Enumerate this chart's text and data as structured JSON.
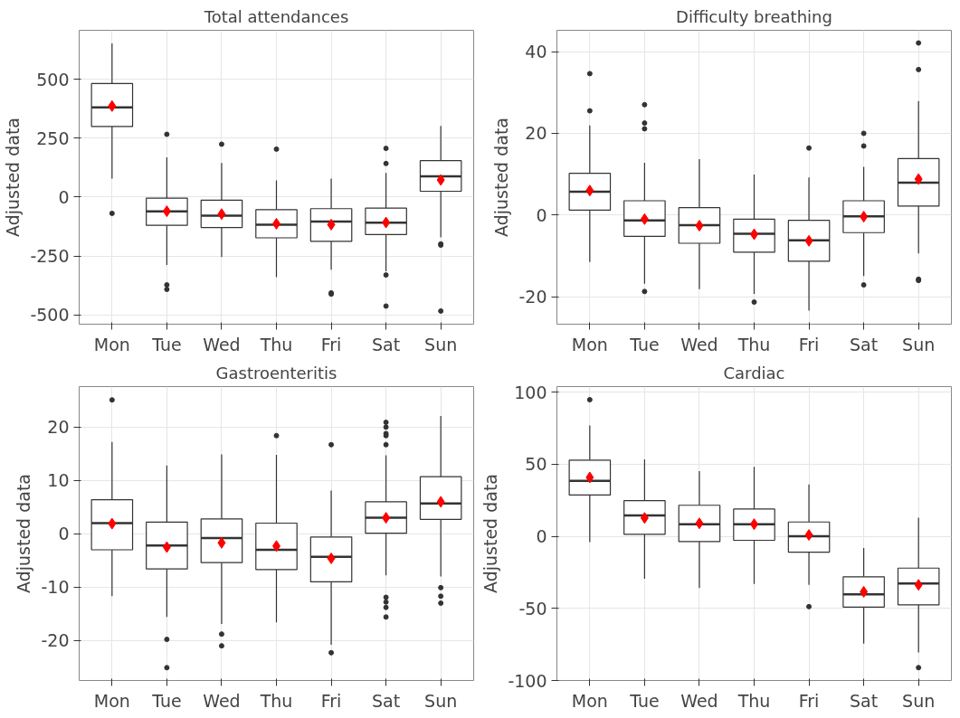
{
  "chart_data": [
    {
      "type": "box",
      "title": "Total attendances",
      "ylabel": "Adjusted data",
      "categories": [
        "Mon",
        "Tue",
        "Wed",
        "Thu",
        "Fri",
        "Sat",
        "Sun"
      ],
      "ylim": [
        -540,
        709
      ],
      "yticks": [
        -500,
        -250,
        0,
        250,
        500
      ],
      "grid": true,
      "boxes": [
        {
          "low": 79,
          "q1": 300,
          "median": 381,
          "q3": 483,
          "high": 653,
          "mean": 387,
          "outliers": [
            -69
          ]
        },
        {
          "low": -288,
          "q1": -120,
          "median": -61,
          "q3": -4,
          "high": 169,
          "mean": -60,
          "outliers": [
            267,
            -373,
            -392
          ]
        },
        {
          "low": -255,
          "q1": -129,
          "median": -79,
          "q3": -13,
          "high": 145,
          "mean": -72,
          "outliers": [
            225
          ]
        },
        {
          "low": -340,
          "q1": -173,
          "median": -117,
          "q3": -53,
          "high": 71,
          "mean": -113,
          "outliers": [
            204
          ]
        },
        {
          "low": -308,
          "q1": -188,
          "median": -104,
          "q3": -49,
          "high": 79,
          "mean": -117,
          "outliers": [
            -407,
            -412
          ]
        },
        {
          "low": -315,
          "q1": -159,
          "median": -109,
          "q3": -47,
          "high": 103,
          "mean": -108,
          "outliers": [
            207,
            143,
            -331,
            -463
          ]
        },
        {
          "low": -171,
          "q1": 25,
          "median": 88,
          "q3": 155,
          "high": 303,
          "mean": 73,
          "outliers": [
            -199,
            -204,
            -484
          ]
        }
      ]
    },
    {
      "type": "box",
      "title": "Difficulty breathing",
      "ylabel": "Adjusted data",
      "categories": [
        "Mon",
        "Tue",
        "Wed",
        "Thu",
        "Fri",
        "Sat",
        "Sun"
      ],
      "ylim": [
        -26.7,
        45.2
      ],
      "yticks": [
        -20,
        0,
        20,
        40
      ],
      "grid": true,
      "boxes": [
        {
          "low": -11.5,
          "q1": 1.2,
          "median": 5.7,
          "q3": 10.2,
          "high": 21.9,
          "mean": 6.0,
          "outliers": [
            34.6,
            25.5
          ]
        },
        {
          "low": -16.8,
          "q1": -5.2,
          "median": -1.3,
          "q3": 3.5,
          "high": 12.8,
          "mean": -1.0,
          "outliers": [
            27.0,
            22.5,
            21.1,
            -18.7
          ]
        },
        {
          "low": -18.1,
          "q1": -6.9,
          "median": -2.5,
          "q3": 1.8,
          "high": 13.7,
          "mean": -2.6
        },
        {
          "low": -19.3,
          "q1": -9.1,
          "median": -4.6,
          "q3": -1.0,
          "high": 9.9,
          "mean": -4.7,
          "outliers": [
            -21.3
          ]
        },
        {
          "low": -23.4,
          "q1": -11.3,
          "median": -6.2,
          "q3": -1.3,
          "high": 9.2,
          "mean": -6.3,
          "outliers": [
            16.4
          ]
        },
        {
          "low": -14.9,
          "q1": -4.3,
          "median": -0.3,
          "q3": 3.5,
          "high": 11.8,
          "mean": -0.4,
          "outliers": [
            20.0,
            16.9,
            -17.1
          ]
        },
        {
          "low": -9.4,
          "q1": 2.2,
          "median": 7.9,
          "q3": 13.8,
          "high": 27.9,
          "mean": 8.8,
          "outliers": [
            42.1,
            35.6,
            -15.7,
            -16.0
          ]
        }
      ]
    },
    {
      "type": "box",
      "title": "Gastroenteritis",
      "ylabel": "Adjusted data",
      "categories": [
        "Mon",
        "Tue",
        "Wed",
        "Thu",
        "Fri",
        "Sat",
        "Sun"
      ],
      "ylim": [
        -27.5,
        27.6
      ],
      "yticks": [
        -20,
        -10,
        0,
        10,
        20
      ],
      "grid": true,
      "boxes": [
        {
          "low": -11.7,
          "q1": -3.0,
          "median": 2.0,
          "q3": 6.4,
          "high": 17.2,
          "mean": 1.9,
          "outliers": [
            25.1
          ]
        },
        {
          "low": -15.6,
          "q1": -6.6,
          "median": -2.2,
          "q3": 2.2,
          "high": 12.8,
          "mean": -2.5,
          "outliers": [
            -19.8,
            -25.1
          ]
        },
        {
          "low": -16.9,
          "q1": -5.4,
          "median": -0.8,
          "q3": 2.8,
          "high": 14.9,
          "mean": -1.7,
          "outliers": [
            -18.8,
            -21.0
          ]
        },
        {
          "low": -16.6,
          "q1": -6.7,
          "median": -3.0,
          "q3": 2.0,
          "high": 14.8,
          "mean": -2.3,
          "outliers": [
            18.4
          ]
        },
        {
          "low": -20.8,
          "q1": -9.0,
          "median": -4.3,
          "q3": -0.6,
          "high": 8.1,
          "mean": -4.6,
          "outliers": [
            16.7,
            -22.3
          ]
        },
        {
          "low": -7.8,
          "q1": 0.1,
          "median": 3.0,
          "q3": 6.0,
          "high": 14.7,
          "mean": 3.0,
          "outliers": [
            20.9,
            20.0,
            18.8,
            18.4,
            16.7,
            -11.9,
            -12.8,
            -13.8,
            -15.6
          ]
        },
        {
          "low": -8.0,
          "q1": 2.7,
          "median": 5.7,
          "q3": 10.7,
          "high": 22.1,
          "mean": 6.0,
          "outliers": [
            -10.1,
            -11.7,
            -13.0
          ]
        }
      ]
    },
    {
      "type": "box",
      "title": "Cardiac",
      "ylabel": "Adjusted data",
      "categories": [
        "Mon",
        "Tue",
        "Wed",
        "Thu",
        "Fri",
        "Sat",
        "Sun"
      ],
      "ylim": [
        -100,
        103.8
      ],
      "yticks": [
        -100,
        -50,
        0,
        50,
        100
      ],
      "grid": true,
      "boxes": [
        {
          "low": -4.1,
          "q1": 28.6,
          "median": 38.5,
          "q3": 52.8,
          "high": 76.9,
          "mean": 40.8,
          "outliers": [
            94.7
          ]
        },
        {
          "low": -29.4,
          "q1": 1.3,
          "median": 14.4,
          "q3": 24.7,
          "high": 53.3,
          "mean": 12.7
        },
        {
          "low": -35.9,
          "q1": -3.7,
          "median": 8.4,
          "q3": 21.5,
          "high": 45.1,
          "mean": 9.0
        },
        {
          "low": -33.1,
          "q1": -2.8,
          "median": 8.4,
          "q3": 18.9,
          "high": 48.1,
          "mean": 8.4
        },
        {
          "low": -33.7,
          "q1": -11.0,
          "median": 0,
          "q3": 9.9,
          "high": 35.9,
          "mean": 0.9,
          "outliers": [
            -48.8
          ]
        },
        {
          "low": -74.5,
          "q1": -49.1,
          "median": -40.2,
          "q3": -28.1,
          "high": -8.2,
          "mean": -38.5
        },
        {
          "low": -80.6,
          "q1": -47.5,
          "median": -32.7,
          "q3": -22.1,
          "high": 12.9,
          "mean": -33.7,
          "outliers": [
            -91.1
          ]
        }
      ]
    }
  ]
}
